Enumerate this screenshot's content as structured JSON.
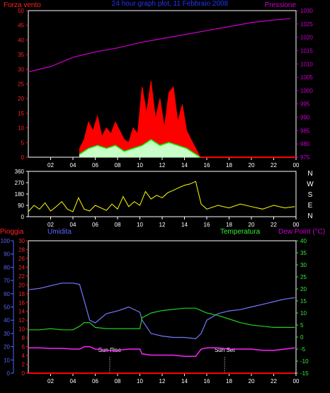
{
  "header": {
    "left_label": "Forza vento",
    "title": "24 hour graph plot, 11 Febbraio 2008",
    "right_label": "Pressione"
  },
  "colors": {
    "wind": "#ff0000",
    "gust": "#ff0000",
    "wind_avg": "#00ff00",
    "wind_low": "#c8ffc8",
    "pressure": "#cc00cc",
    "direction": "#ffff00",
    "rain": "#ff0000",
    "humidity": "#7777ff",
    "temperature": "#22cc22",
    "dewpoint": "#ff22ff",
    "axis_red": "#ff2222",
    "axis_blue": "#5566ff",
    "axis_green": "#33ee33",
    "title_blue": "#2233ff"
  },
  "chart_data": [
    {
      "type": "line",
      "name": "wind-pressure",
      "xlabel": "",
      "x_ticks": [
        "02",
        "04",
        "06",
        "08",
        "10",
        "12",
        "14",
        "16",
        "18",
        "20",
        "22",
        "00"
      ],
      "left_axis": {
        "label": "Forza vento",
        "ticks": [
          0,
          5,
          10,
          15,
          20,
          25,
          30,
          35,
          40,
          45,
          50
        ],
        "ylim": [
          0,
          50
        ]
      },
      "right_axis": {
        "label": "Pressione",
        "ticks": [
          975,
          980,
          985,
          990,
          995,
          1000,
          1005,
          1010,
          1015,
          1020,
          1025,
          1030
        ],
        "ylim": [
          975,
          1030
        ]
      },
      "series": [
        {
          "name": "Pressione",
          "axis": "right",
          "x": [
            0,
            2,
            4,
            6,
            8,
            10,
            12,
            14,
            16,
            18,
            20,
            22,
            23.5
          ],
          "values": [
            1007,
            1009,
            1012.5,
            1014.5,
            1016,
            1018,
            1019.5,
            1021,
            1022.5,
            1024,
            1025.5,
            1026.5,
            1027
          ]
        },
        {
          "name": "",
          "axis": "left",
          "x": [
            4.6,
            5.0,
            5.4,
            5.8,
            6.2,
            6.6,
            7.0,
            7.4,
            7.8,
            8.2,
            8.6,
            9.0,
            9.4,
            9.8,
            10.2,
            10.6,
            11.0,
            11.4,
            11.8,
            12.2,
            12.6,
            13.0,
            13.4,
            13.8,
            14.2,
            14.6,
            15.0,
            15.4
          ],
          "values": [
            3,
            6,
            12,
            9,
            14,
            7,
            10,
            8,
            12,
            9,
            6,
            5,
            10,
            8,
            24,
            15,
            26,
            13,
            20,
            10,
            22,
            24,
            12,
            18,
            9,
            6,
            3,
            0
          ]
        },
        {
          "name": "",
          "axis": "left",
          "x": [
            4.6,
            5.4,
            6.2,
            7.0,
            7.8,
            8.6,
            9.4,
            10.2,
            11.0,
            11.8,
            12.6,
            13.4,
            14.2,
            15.0,
            15.4
          ],
          "values": [
            1,
            3,
            4,
            3,
            4,
            2,
            3,
            4,
            6,
            4,
            5,
            4,
            3,
            1,
            0
          ]
        }
      ]
    },
    {
      "type": "line",
      "name": "wind-direction",
      "x_ticks": [
        "02",
        "04",
        "06",
        "08",
        "10",
        "12",
        "14",
        "16",
        "18",
        "20",
        "22",
        "00"
      ],
      "left_axis": {
        "ticks": [
          0,
          90,
          180,
          270,
          360
        ],
        "ylim": [
          0,
          360
        ]
      },
      "right_axis": {
        "ticks": [
          "N",
          "W",
          "S",
          "E",
          "N"
        ]
      },
      "series": [
        {
          "name": "",
          "x": [
            0,
            0.5,
            1,
            1.5,
            2,
            2.5,
            3,
            3.5,
            4,
            4.5,
            5,
            5.5,
            6,
            6.5,
            7,
            7.5,
            8,
            8.5,
            9,
            9.5,
            10,
            10.5,
            11,
            11.5,
            12,
            12.5,
            13,
            13.5,
            14,
            14.5,
            15,
            15.5,
            16,
            17,
            18,
            19,
            20,
            21,
            22,
            23,
            23.9
          ],
          "values": [
            40,
            90,
            60,
            110,
            45,
            80,
            120,
            60,
            40,
            150,
            60,
            45,
            90,
            70,
            50,
            100,
            60,
            160,
            80,
            120,
            90,
            200,
            140,
            170,
            150,
            190,
            210,
            230,
            250,
            260,
            280,
            100,
            60,
            90,
            70,
            100,
            80,
            60,
            90,
            70,
            80
          ]
        }
      ]
    },
    {
      "type": "line",
      "name": "humidity-temperature",
      "xlabel": "",
      "x_ticks": [
        "02",
        "04",
        "06",
        "08",
        "10",
        "12",
        "14",
        "16",
        "18",
        "20",
        "22",
        "00"
      ],
      "axis_labels": [
        "Pioggia",
        "Umidita",
        "Temperatura",
        "Dew Point (°C)"
      ],
      "rain_axis": {
        "ticks": [
          0,
          2,
          4,
          6,
          8,
          10,
          12,
          14,
          16,
          18,
          20,
          22,
          24,
          26,
          28,
          30
        ],
        "ylim": [
          0,
          30
        ]
      },
      "humidity_axis": {
        "ticks": [
          0,
          10,
          20,
          30,
          40,
          50,
          60,
          70,
          80,
          90,
          100
        ],
        "ylim": [
          0,
          100
        ]
      },
      "temperature_axis": {
        "ticks": [
          -15,
          -10,
          -5,
          0,
          5,
          10,
          15,
          20,
          25,
          30,
          35,
          40
        ],
        "ylim": [
          -15,
          40
        ]
      },
      "annotations": [
        {
          "text": "Sun Rise",
          "x": 7.3
        },
        {
          "text": "Sun Set",
          "x": 17.6
        }
      ],
      "series": [
        {
          "name": "Umidita",
          "axis": "humidity",
          "x": [
            0,
            1,
            2,
            3,
            4,
            4.6,
            5,
            5.5,
            6,
            7,
            8,
            9,
            10,
            10.2,
            11,
            12,
            13,
            14,
            15,
            15.5,
            16,
            17,
            18,
            19,
            20,
            21,
            22,
            23,
            23.9
          ],
          "values": [
            63,
            64,
            66,
            68,
            68,
            67,
            55,
            40,
            38,
            45,
            47,
            50,
            46,
            40,
            30,
            28,
            27,
            27,
            26,
            30,
            40,
            45,
            47,
            48,
            50,
            52,
            54,
            56,
            57
          ]
        },
        {
          "name": "Temperatura",
          "axis": "temperature",
          "x": [
            0,
            1,
            2,
            3,
            4,
            4.6,
            5,
            5.5,
            6,
            7,
            8,
            9,
            10,
            10.2,
            11,
            12,
            13,
            14,
            15,
            15.5,
            16,
            17,
            18,
            19,
            20,
            21,
            22,
            23,
            23.9
          ],
          "values": [
            3,
            3,
            3.5,
            3,
            3,
            4.5,
            6,
            6,
            4,
            3.5,
            3.5,
            3.5,
            3.5,
            8,
            10,
            11,
            11.5,
            12,
            12,
            11,
            10,
            9,
            7.5,
            6,
            5,
            4.5,
            4,
            4,
            4
          ]
        },
        {
          "name": "Dew Point (°C)",
          "axis": "temperature",
          "x": [
            0,
            1,
            2,
            3,
            4,
            4.6,
            5,
            5.5,
            6,
            7,
            8,
            9,
            10,
            10.2,
            11,
            12,
            13,
            14,
            15,
            15.5,
            16,
            17,
            18,
            19,
            20,
            21,
            22,
            23,
            23.9
          ],
          "values": [
            -4.5,
            -4.5,
            -4.7,
            -4.7,
            -5,
            -5,
            -4,
            -4,
            -5,
            -5.5,
            -5.5,
            -5,
            -5,
            -7,
            -7.5,
            -7.5,
            -7.5,
            -8,
            -8,
            -5,
            -4.5,
            -4.5,
            -5,
            -5,
            -5,
            -5.5,
            -5.5,
            -5,
            -4.5
          ]
        },
        {
          "name": "Pioggia",
          "axis": "rain",
          "x": [
            0,
            23.9
          ],
          "values": [
            0,
            0
          ]
        }
      ]
    }
  ]
}
